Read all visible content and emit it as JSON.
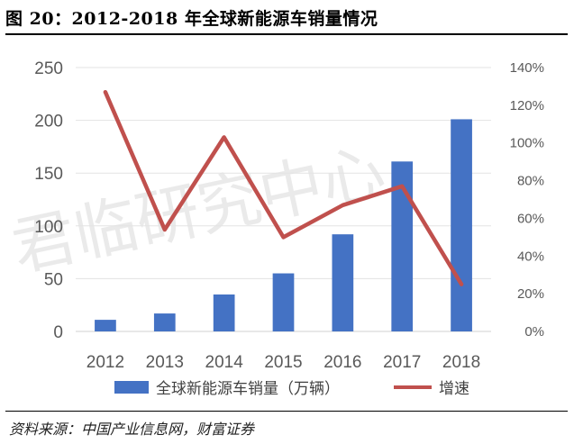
{
  "figure": {
    "title": "图 20：2012-2018 年全球新能源车销量情况",
    "source": "资料来源：中国产业信息网，财富证券",
    "watermark": "君临研究中心"
  },
  "chart_data": {
    "type": "bar",
    "categories": [
      "2012",
      "2013",
      "2014",
      "2015",
      "2016",
      "2017",
      "2018"
    ],
    "series": [
      {
        "name": "全球新能源车销量（万辆）",
        "type": "bar",
        "axis": "left",
        "color": "#4472C4",
        "values": [
          11,
          17,
          35,
          55,
          92,
          161,
          201
        ]
      },
      {
        "name": "增速",
        "type": "line",
        "axis": "right",
        "color": "#C0504D",
        "values": [
          127,
          54,
          103,
          50,
          67,
          77,
          25
        ]
      }
    ],
    "y_left": {
      "ticks": [
        "0",
        "50",
        "100",
        "150",
        "200",
        "250"
      ],
      "ylim": [
        0,
        250
      ]
    },
    "y_right": {
      "ticks": [
        "0%",
        "20%",
        "40%",
        "60%",
        "80%",
        "100%",
        "120%",
        "140%"
      ],
      "ylim": [
        0,
        140
      ]
    },
    "legend_position": "bottom",
    "grid": true
  }
}
